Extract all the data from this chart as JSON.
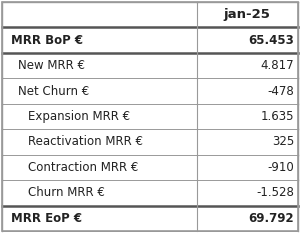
{
  "header_label": "jan-25",
  "rows": [
    {
      "label": "MRR BoP €",
      "value": "65.453",
      "bold": true,
      "indent": 0,
      "thick_top": false,
      "thick_bottom": true
    },
    {
      "label": "New MRR €",
      "value": "4.817",
      "bold": false,
      "indent": 1,
      "thick_top": false,
      "thick_bottom": false
    },
    {
      "label": "Net Churn €",
      "value": "-478",
      "bold": false,
      "indent": 1,
      "thick_top": false,
      "thick_bottom": false
    },
    {
      "label": "Expansion MRR €",
      "value": "1.635",
      "bold": false,
      "indent": 2,
      "thick_top": false,
      "thick_bottom": false
    },
    {
      "label": "Reactivation MRR €",
      "value": "325",
      "bold": false,
      "indent": 2,
      "thick_top": false,
      "thick_bottom": false
    },
    {
      "label": "Contraction MRR €",
      "value": "-910",
      "bold": false,
      "indent": 2,
      "thick_top": false,
      "thick_bottom": false
    },
    {
      "label": "Churn MRR €",
      "value": "-1.528",
      "bold": false,
      "indent": 2,
      "thick_top": false,
      "thick_bottom": true
    },
    {
      "label": "MRR EoP €",
      "value": "69.792",
      "bold": true,
      "indent": 0,
      "thick_top": false,
      "thick_bottom": false
    }
  ],
  "bg_color": "#ffffff",
  "border_color": "#999999",
  "thick_border_color": "#555555",
  "text_color": "#222222",
  "col_split": 0.655,
  "font_size": 8.5,
  "header_font_size": 9.5,
  "indent_map": [
    0.03,
    0.055,
    0.085
  ]
}
